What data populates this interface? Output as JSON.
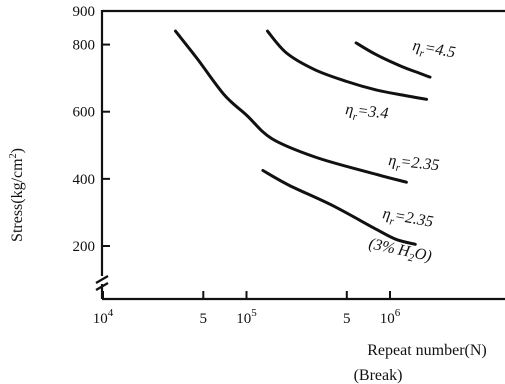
{
  "chart_data": {
    "type": "line",
    "x_scale": "log",
    "x_range": [
      10000,
      2000000
    ],
    "y_range": [
      80,
      900
    ],
    "y_axis_break": true,
    "grid": false,
    "x_ticks": [
      {
        "value": 10000,
        "mant": "10",
        "exp": "4"
      },
      {
        "value": 50000,
        "mant": "5",
        "exp": ""
      },
      {
        "value": 100000,
        "mant": "10",
        "exp": "5"
      },
      {
        "value": 500000,
        "mant": "5",
        "exp": ""
      },
      {
        "value": 1000000,
        "mant": "10",
        "exp": "6"
      }
    ],
    "y_ticks": [
      {
        "value": 200,
        "label": "200"
      },
      {
        "value": 400,
        "label": "400"
      },
      {
        "value": 600,
        "label": "600"
      },
      {
        "value": 800,
        "label": "800"
      },
      {
        "value": 900,
        "label": "900"
      }
    ],
    "ylabel": {
      "text": "Stress(kg/cm",
      "sup": "2",
      "tail": ")"
    },
    "xlabel": "Repeat number(N)",
    "xlabel2": "(Break)",
    "series": [
      {
        "label": "ηr = 4.5",
        "label_parts": {
          "eta": "η",
          "sub": "r",
          "val": "=4.5"
        },
        "points": [
          [
            580000,
            805
          ],
          [
            800000,
            770
          ],
          [
            1200000,
            735
          ],
          [
            1600000,
            715
          ],
          [
            1900000,
            703
          ]
        ]
      },
      {
        "label": "ηr = 3.4",
        "label_parts": {
          "eta": "η",
          "sub": "r",
          "val": "=3.4"
        },
        "points": [
          [
            140000,
            840
          ],
          [
            190000,
            775
          ],
          [
            300000,
            725
          ],
          [
            500000,
            690
          ],
          [
            800000,
            665
          ],
          [
            1200000,
            650
          ],
          [
            1800000,
            637
          ]
        ]
      },
      {
        "label": "ηr = 2.35",
        "label_parts": {
          "eta": "η",
          "sub": "r",
          "val": "=2.35"
        },
        "points": [
          [
            32000,
            840
          ],
          [
            45000,
            760
          ],
          [
            70000,
            650
          ],
          [
            100000,
            590
          ],
          [
            150000,
            520
          ],
          [
            300000,
            465
          ],
          [
            700000,
            420
          ],
          [
            1300000,
            390
          ]
        ]
      },
      {
        "label": "ηr = 2.35",
        "label_parts": {
          "eta": "η",
          "sub": "r",
          "val": "=2.35"
        },
        "note": "(3% H₂O)",
        "note_parts": {
          "pre": "(3% H",
          "sub": "2",
          "post": "O)"
        },
        "points": [
          [
            130000,
            425
          ],
          [
            200000,
            380
          ],
          [
            400000,
            320
          ],
          [
            800000,
            250
          ],
          [
            1100000,
            220
          ],
          [
            1500000,
            205
          ]
        ]
      }
    ]
  }
}
